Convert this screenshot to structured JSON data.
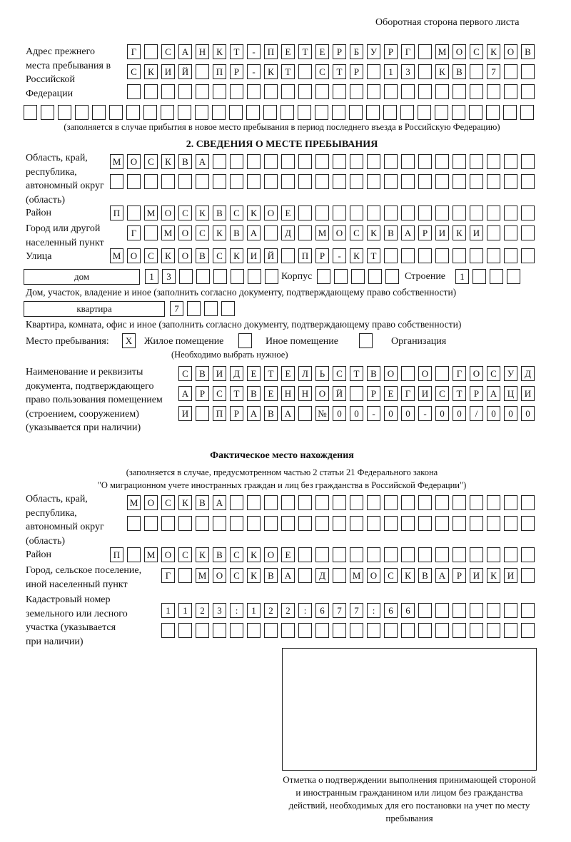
{
  "header": "Оборотная сторона первого листа",
  "prev_address": {
    "label": "Адрес прежнего места пребывания в Российской Федерации",
    "rows": [
      [
        "Г",
        "",
        "С",
        "А",
        "Н",
        "К",
        "Т",
        "-",
        "П",
        "Е",
        "Т",
        "Е",
        "Р",
        "Б",
        "У",
        "Р",
        "Г",
        "",
        "М",
        "О",
        "С",
        "К",
        "О",
        "В"
      ],
      [
        "С",
        "К",
        "И",
        "Й",
        "",
        "П",
        "Р",
        "-",
        "К",
        "Т",
        "",
        "С",
        "Т",
        "Р",
        "",
        "1",
        "3",
        "",
        "К",
        "В",
        "",
        "7",
        "",
        ""
      ],
      [
        "",
        "",
        "",
        "",
        "",
        "",
        "",
        "",
        "",
        "",
        "",
        "",
        "",
        "",
        "",
        "",
        "",
        "",
        "",
        "",
        "",
        "",
        "",
        ""
      ],
      [
        "",
        "",
        "",
        "",
        "",
        "",
        "",
        "",
        "",
        "",
        "",
        "",
        "",
        "",
        "",
        "",
        "",
        "",
        "",
        "",
        "",
        "",
        "",
        "",
        "",
        "",
        "",
        "",
        "",
        ""
      ]
    ],
    "caption": "(заполняется в случае прибытия в новое место пребывания в период последнего въезда в Российскую Федерацию)"
  },
  "section2": {
    "title": "2. СВЕДЕНИЯ О МЕСТЕ ПРЕБЫВАНИЯ",
    "region_label": "Область, край, республика, автономный округ (область)",
    "region": [
      [
        "М",
        "О",
        "С",
        "К",
        "В",
        "А",
        "",
        "",
        "",
        "",
        "",
        "",
        "",
        "",
        "",
        "",
        "",
        "",
        "",
        "",
        "",
        "",
        "",
        "",
        ""
      ],
      [
        "",
        "",
        "",
        "",
        "",
        "",
        "",
        "",
        "",
        "",
        "",
        "",
        "",
        "",
        "",
        "",
        "",
        "",
        "",
        "",
        "",
        "",
        "",
        "",
        ""
      ]
    ],
    "district_label": "Район",
    "district": [
      "П",
      "",
      "М",
      "О",
      "С",
      "К",
      "В",
      "С",
      "К",
      "О",
      "Е",
      "",
      "",
      "",
      "",
      "",
      "",
      "",
      "",
      "",
      "",
      "",
      "",
      "",
      ""
    ],
    "city_label": "Город или другой населенный пункт",
    "city": [
      "Г",
      "",
      "М",
      "О",
      "С",
      "К",
      "В",
      "А",
      "",
      "Д",
      "",
      "М",
      "О",
      "С",
      "К",
      "В",
      "А",
      "Р",
      "И",
      "К",
      "И",
      "",
      "",
      ""
    ],
    "street_label": "Улица",
    "street": [
      "М",
      "О",
      "С",
      "К",
      "О",
      "В",
      "С",
      "К",
      "И",
      "Й",
      "",
      "П",
      "Р",
      "-",
      "К",
      "Т",
      "",
      "",
      "",
      "",
      "",
      "",
      "",
      "",
      ""
    ],
    "house_type": "дом",
    "house": [
      "1",
      "3",
      "",
      "",
      "",
      "",
      "",
      ""
    ],
    "korpus_label": "Корпус",
    "korpus": [
      "",
      "",
      "",
      "",
      ""
    ],
    "building_label": "Строение",
    "building": [
      "1",
      "",
      "",
      ""
    ],
    "house_caption": "Дом, участок, владение и иное (заполнить согласно документу, подтверждающему право собственности)",
    "apt_type": "квартира",
    "apt": [
      "7",
      "",
      "",
      ""
    ],
    "apt_caption": "Квартира, комната, офис и иное (заполнить согласно документу, подтверждающему право собственности)",
    "stay_label": "Место пребывания:",
    "stay_options": [
      {
        "label": "Жилое помещение",
        "mark": "X"
      },
      {
        "label": "Иное помещение",
        "mark": ""
      },
      {
        "label": "Организация",
        "mark": ""
      }
    ],
    "stay_caption": "(Необходимо выбрать нужное)",
    "doc_label": "Наименование и реквизиты документа, подтверждающего право пользования помещением (строением, сооружением) (указывается при наличии)",
    "doc": [
      [
        "С",
        "В",
        "И",
        "Д",
        "Е",
        "Т",
        "Е",
        "Л",
        "Ь",
        "С",
        "Т",
        "В",
        "О",
        "",
        "О",
        "",
        "Г",
        "О",
        "С",
        "У",
        "Д"
      ],
      [
        "А",
        "Р",
        "С",
        "Т",
        "В",
        "Е",
        "Н",
        "Н",
        "О",
        "Й",
        "",
        "Р",
        "Е",
        "Г",
        "И",
        "С",
        "Т",
        "Р",
        "А",
        "Ц",
        "И"
      ],
      [
        "И",
        "",
        "П",
        "Р",
        "А",
        "В",
        "А",
        "",
        "№",
        "0",
        "0",
        "-",
        "0",
        "0",
        "-",
        "0",
        "0",
        "/",
        "0",
        "0",
        "0"
      ]
    ]
  },
  "actual": {
    "title": "Фактическое место нахождения",
    "caption1": "(заполняется в случае, предусмотренном частью 2 статьи 21 Федерального закона",
    "caption2": "\"О миграционном учете иностранных граждан и лиц без гражданства в Российской Федерации\")",
    "region_label": "Область, край, республика, автономный округ (область)",
    "region": [
      [
        "М",
        "О",
        "С",
        "К",
        "В",
        "А",
        "",
        "",
        "",
        "",
        "",
        "",
        "",
        "",
        "",
        "",
        "",
        "",
        "",
        "",
        "",
        "",
        "",
        ""
      ],
      [
        "",
        "",
        "",
        "",
        "",
        "",
        "",
        "",
        "",
        "",
        "",
        "",
        "",
        "",
        "",
        "",
        "",
        "",
        "",
        "",
        "",
        "",
        "",
        ""
      ]
    ],
    "district_label": "Район",
    "district": [
      "П",
      "",
      "М",
      "О",
      "С",
      "К",
      "В",
      "С",
      "К",
      "О",
      "Е",
      "",
      "",
      "",
      "",
      "",
      "",
      "",
      "",
      "",
      "",
      "",
      "",
      "",
      ""
    ],
    "city_label": "Город, сельское поселение, иной населенный пункт",
    "city": [
      "Г",
      "",
      "М",
      "О",
      "С",
      "К",
      "В",
      "А",
      "",
      "Д",
      "",
      "М",
      "О",
      "С",
      "К",
      "В",
      "А",
      "Р",
      "И",
      "К",
      "И",
      ""
    ],
    "cadastral_label": "Кадастровый номер земельного или лесного участка (указывается при наличии)",
    "cadastral": [
      [
        "1",
        "1",
        "2",
        "3",
        ":",
        "1",
        "2",
        "2",
        ":",
        "6",
        "7",
        "7",
        ":",
        "6",
        "6",
        "",
        "",
        "",
        "",
        "",
        "",
        ""
      ],
      [
        "",
        "",
        "",
        "",
        "",
        "",
        "",
        "",
        "",
        "",
        "",
        "",
        "",
        "",
        "",
        "",
        "",
        "",
        "",
        "",
        "",
        ""
      ]
    ]
  },
  "stamp_caption": "Отметка о подтверждении выполнения принимающей стороной и иностранным гражданином или лицом без гражданства действий, необходимых для его постановки на учет по месту пребывания"
}
